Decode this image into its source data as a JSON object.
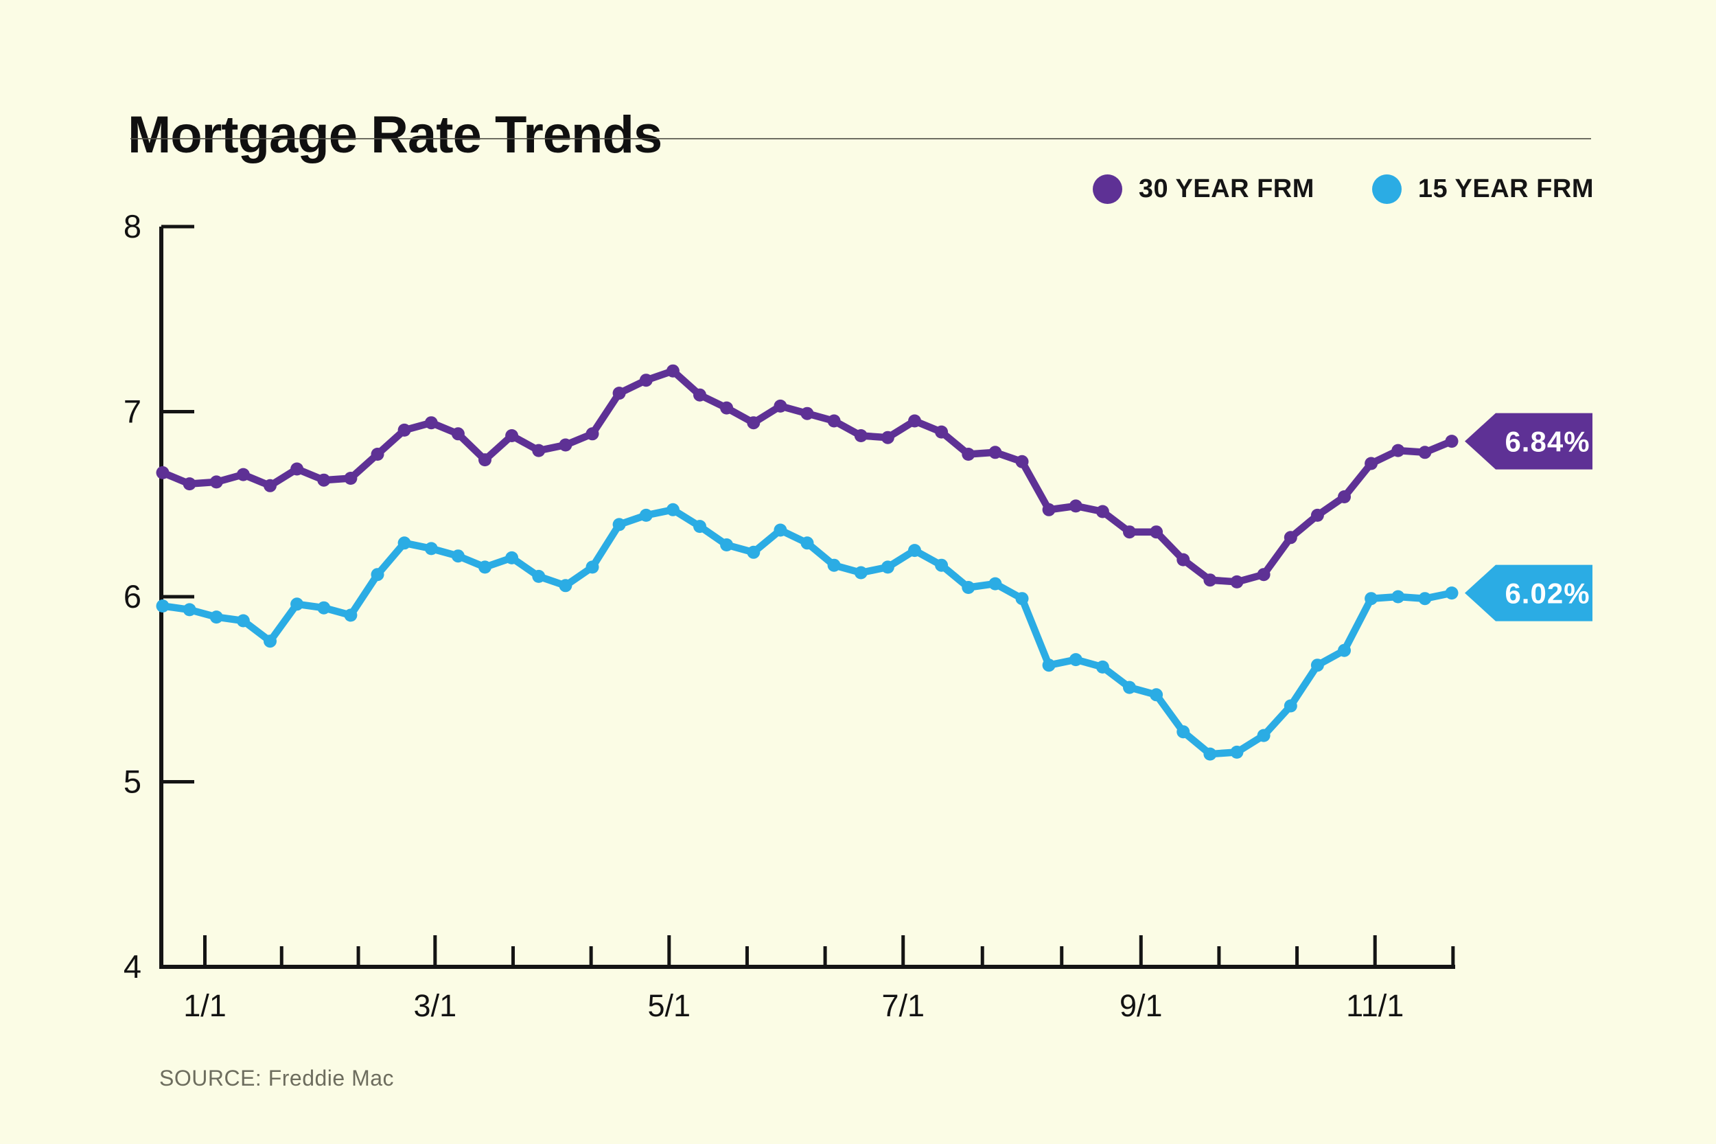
{
  "page": {
    "background_color": "#fbfce5",
    "accent_purple": "#5e3195",
    "accent_blue": "#2bace4"
  },
  "header": {
    "title": "Mortgage Rate Trends"
  },
  "legend": [
    {
      "label": "30 YEAR FRM",
      "color": "#5e3195"
    },
    {
      "label": "15 YEAR FRM",
      "color": "#2bace4"
    }
  ],
  "footer": {
    "source": "SOURCE: Freddie Mac"
  },
  "chart_data": {
    "type": "line",
    "title": "Mortgage Rate Trends",
    "x_description": "Weekly mortgage rate averages, Dec 21 2023 through Nov 21 2024",
    "x_interval_days": 7,
    "x_total_days": 336,
    "xtick_labels": [
      "1/1",
      "3/1",
      "5/1",
      "7/1",
      "9/1",
      "11/1"
    ],
    "xtick_day_offsets": [
      11,
      71,
      132,
      193,
      255,
      316
    ],
    "ylim": [
      4,
      8
    ],
    "yticks": [
      8,
      7,
      6,
      5,
      4
    ],
    "grid": false,
    "legend_position": "top-right",
    "source": "SOURCE: Freddie Mac",
    "series": [
      {
        "name": "30 YEAR FRM",
        "color": "#5e3195",
        "end_label": "6.84%",
        "values": [
          6.67,
          6.61,
          6.62,
          6.66,
          6.6,
          6.69,
          6.63,
          6.64,
          6.77,
          6.9,
          6.94,
          6.88,
          6.74,
          6.87,
          6.79,
          6.82,
          6.88,
          7.1,
          7.17,
          7.22,
          7.09,
          7.02,
          6.94,
          7.03,
          6.99,
          6.95,
          6.87,
          6.86,
          6.95,
          6.89,
          6.77,
          6.78,
          6.73,
          6.47,
          6.49,
          6.46,
          6.35,
          6.35,
          6.2,
          6.09,
          6.08,
          6.12,
          6.32,
          6.44,
          6.54,
          6.72,
          6.79,
          6.78,
          6.84
        ]
      },
      {
        "name": "15 YEAR FRM",
        "color": "#2bace4",
        "end_label": "6.02%",
        "values": [
          5.95,
          5.93,
          5.89,
          5.87,
          5.76,
          5.96,
          5.94,
          5.9,
          6.12,
          6.29,
          6.26,
          6.22,
          6.16,
          6.21,
          6.11,
          6.06,
          6.16,
          6.39,
          6.44,
          6.47,
          6.38,
          6.28,
          6.24,
          6.36,
          6.29,
          6.17,
          6.13,
          6.16,
          6.25,
          6.17,
          6.05,
          6.07,
          5.99,
          5.63,
          5.66,
          5.62,
          5.51,
          5.47,
          5.27,
          5.15,
          5.16,
          5.25,
          5.41,
          5.63,
          5.71,
          5.99,
          6.0,
          5.99,
          6.02
        ]
      }
    ]
  }
}
